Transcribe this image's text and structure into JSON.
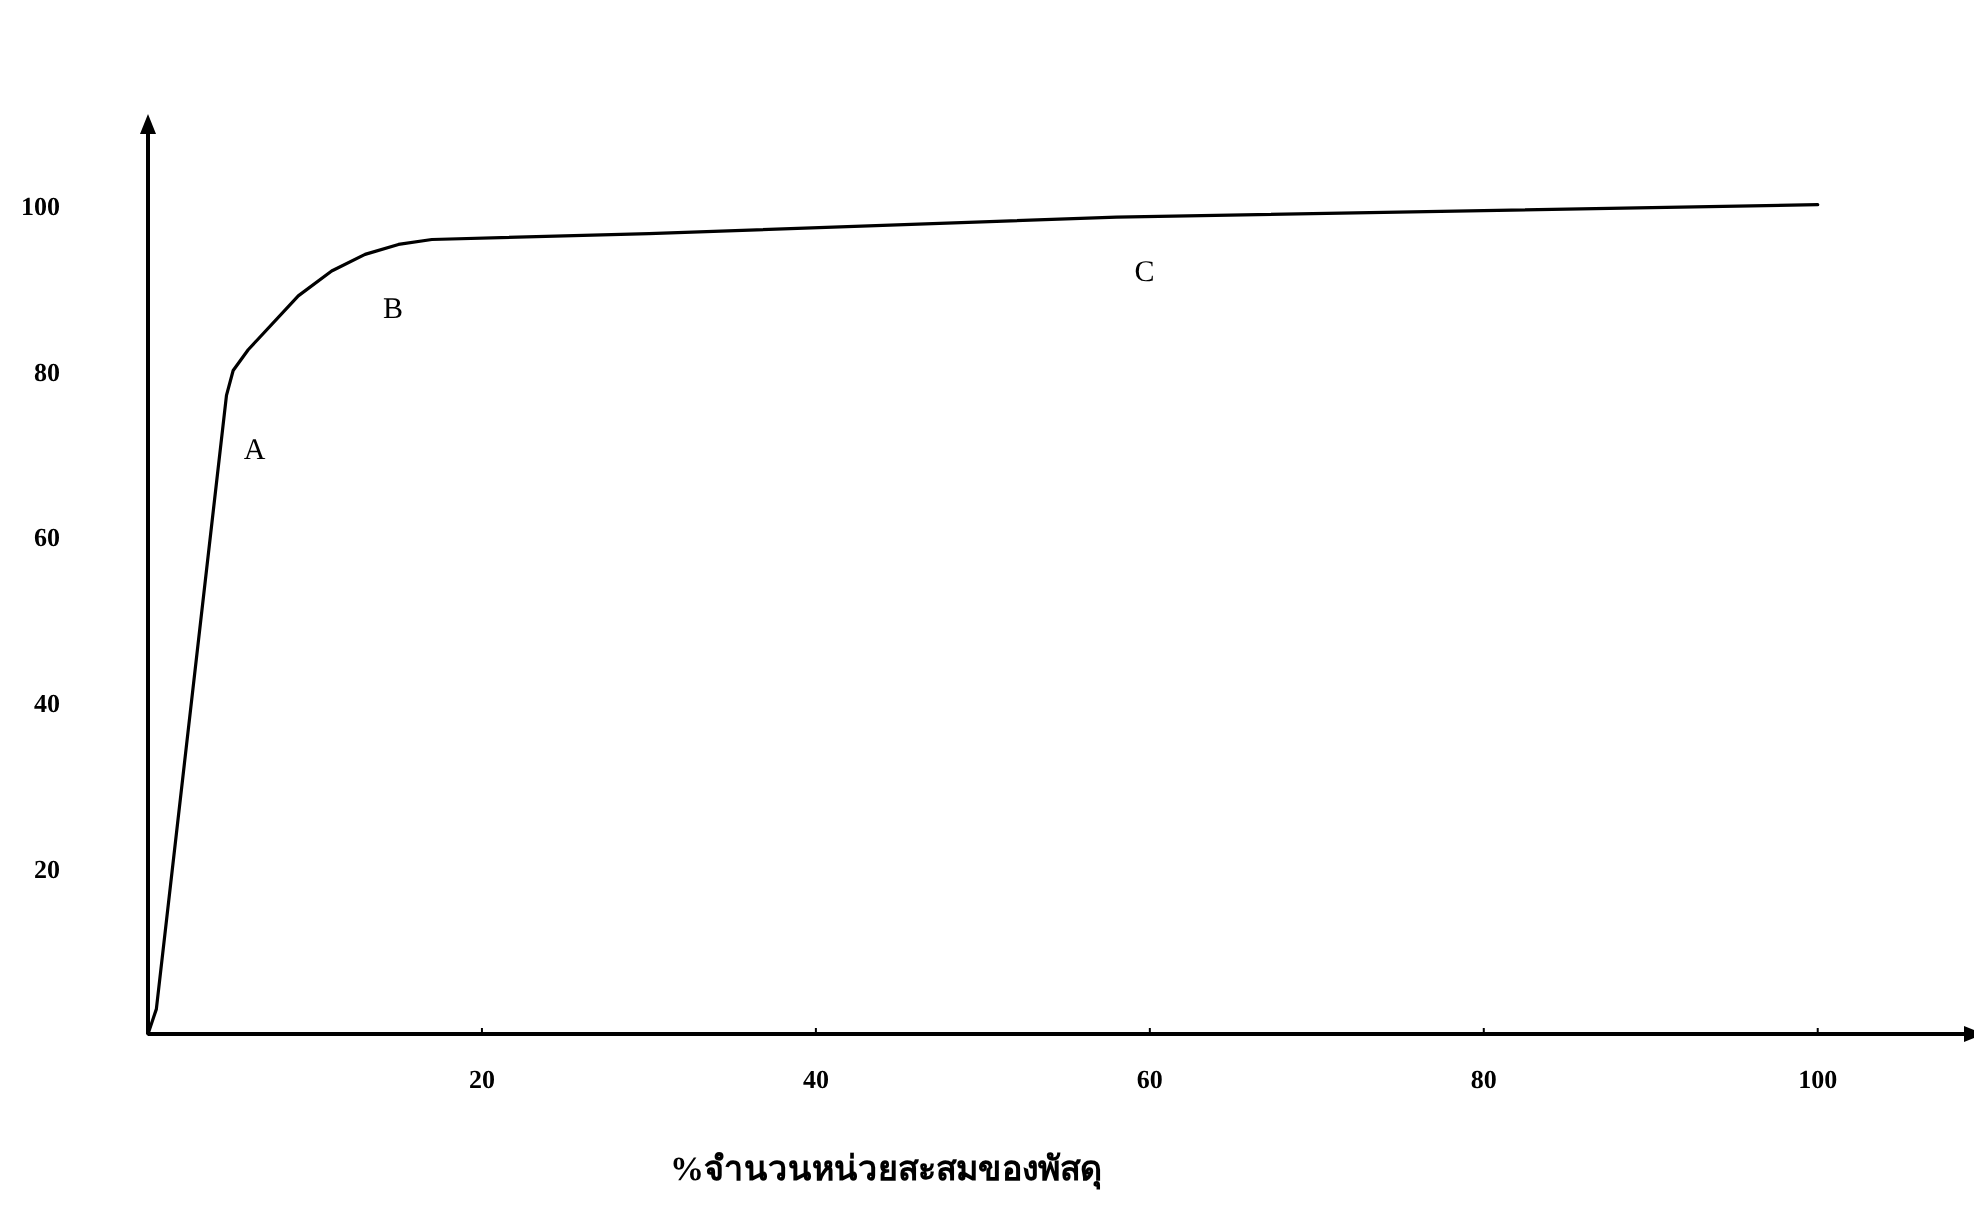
{
  "chart_data": {
    "type": "line",
    "xlabel": "%จำนวนหน่วยสะสมของพัสดุ",
    "x": [
      0,
      0.5,
      4.7,
      5.1,
      6,
      9,
      11,
      13,
      15,
      17,
      30,
      58,
      100
    ],
    "series": [
      {
        "color": "#000000",
        "values": [
          0,
          3,
          77,
          80,
          82.5,
          89,
          92,
          94,
          95.2,
          95.8,
          96.5,
          98.5,
          100
        ]
      }
    ],
    "xlim": [
      0,
      109
    ],
    "ylim": [
      0,
      109
    ],
    "xticks": [
      20,
      40,
      60,
      80,
      100
    ],
    "yticks": [
      20,
      40,
      60,
      80,
      100
    ],
    "grid": false,
    "marker": "none",
    "line_style": "solid",
    "annotations": [
      {
        "text": "A",
        "x": 4.7,
        "y": 77
      },
      {
        "text": "B",
        "x": 13,
        "y": 94
      },
      {
        "text": "C",
        "x": 58,
        "y": 98.5
      }
    ]
  }
}
